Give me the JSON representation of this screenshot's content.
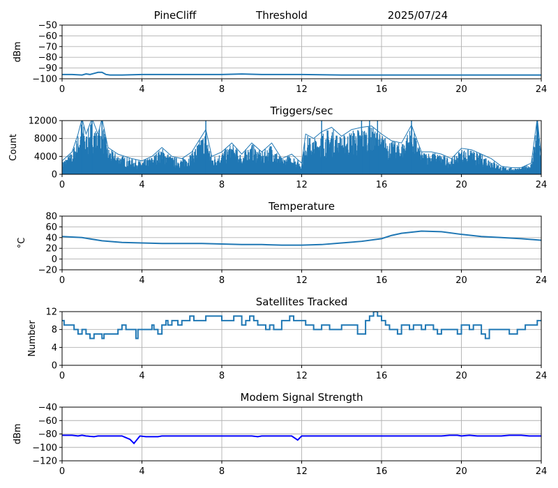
{
  "header": {
    "station": "PineCliff",
    "mode": "Threshold",
    "date": "2025/07/24"
  },
  "chart_data": [
    {
      "type": "line",
      "title": "",
      "ylabel": "dBm",
      "xlim": [
        0,
        24
      ],
      "ylim": [
        -100,
        -50
      ],
      "xticks": [
        0,
        4,
        8,
        12,
        16,
        20,
        24
      ],
      "yticks": [
        -100,
        -90,
        -80,
        -70,
        -60,
        -50
      ],
      "ytick_labels": [
        "−100",
        "−90",
        "−80",
        "−70",
        "−60",
        "−50"
      ],
      "color": "#1f77b4",
      "grid": true,
      "series": [
        {
          "x": [
            0,
            0.5,
            1.0,
            1.2,
            1.4,
            1.6,
            1.8,
            2.0,
            2.2,
            2.4,
            3.0,
            4.0,
            6.0,
            8.0,
            9.0,
            10.0,
            12.0,
            14.0,
            16.0,
            18.0,
            20.0,
            22.0,
            24.0
          ],
          "y": [
            -96,
            -96,
            -96.5,
            -95.5,
            -96,
            -95,
            -94,
            -94,
            -96,
            -96.5,
            -96.5,
            -96,
            -96,
            -96,
            -95.5,
            -96,
            -96,
            -96.5,
            -96.5,
            -96.5,
            -96.5,
            -96.5,
            -96.5
          ]
        }
      ]
    },
    {
      "type": "line",
      "title": "Triggers/sec",
      "ylabel": "Count",
      "xlim": [
        0,
        24
      ],
      "ylim": [
        0,
        12000
      ],
      "xticks": [
        0,
        4,
        8,
        12,
        16,
        20,
        24
      ],
      "yticks": [
        0,
        4000,
        8000,
        12000
      ],
      "ytick_labels": [
        "0",
        "4000",
        "8000",
        "12000"
      ],
      "color": "#1f77b4",
      "grid": true,
      "envelope": [
        [
          0,
          3000
        ],
        [
          0.5,
          5000
        ],
        [
          0.8,
          9000
        ],
        [
          1.0,
          12500
        ],
        [
          1.2,
          9000
        ],
        [
          1.5,
          12500
        ],
        [
          1.8,
          9000
        ],
        [
          2.0,
          12500
        ],
        [
          2.3,
          6000
        ],
        [
          2.8,
          4500
        ],
        [
          3.5,
          3500
        ],
        [
          4.0,
          3000
        ],
        [
          4.5,
          4000
        ],
        [
          5.0,
          6000
        ],
        [
          5.5,
          4000
        ],
        [
          6.0,
          3500
        ],
        [
          6.5,
          5000
        ],
        [
          7.2,
          10000
        ],
        [
          7.5,
          4000
        ],
        [
          8.0,
          5000
        ],
        [
          8.5,
          7000
        ],
        [
          9.0,
          4500
        ],
        [
          9.5,
          7000
        ],
        [
          10.0,
          5000
        ],
        [
          10.5,
          7000
        ],
        [
          11.0,
          3500
        ],
        [
          11.5,
          4500
        ],
        [
          12.0,
          2500
        ],
        [
          12.2,
          9000
        ],
        [
          12.6,
          8000
        ],
        [
          13.0,
          9500
        ],
        [
          13.5,
          10500
        ],
        [
          14.0,
          8500
        ],
        [
          14.5,
          10000
        ],
        [
          15.0,
          10500
        ],
        [
          15.5,
          10800
        ],
        [
          16.0,
          9000
        ],
        [
          16.5,
          7500
        ],
        [
          17.0,
          7000
        ],
        [
          17.5,
          11000
        ],
        [
          18.0,
          5000
        ],
        [
          18.5,
          5000
        ],
        [
          19.0,
          4500
        ],
        [
          19.5,
          3500
        ],
        [
          20.0,
          5800
        ],
        [
          20.5,
          5500
        ],
        [
          21.0,
          4500
        ],
        [
          21.5,
          3500
        ],
        [
          22.0,
          1800
        ],
        [
          22.5,
          1500
        ],
        [
          23.0,
          1500
        ],
        [
          23.5,
          2500
        ],
        [
          23.8,
          12500
        ],
        [
          24.0,
          4000
        ]
      ],
      "spikes": [
        1.0,
        1.5,
        2.0,
        7.2,
        13.0,
        15.0,
        15.4,
        15.8,
        17.5,
        23.8
      ]
    },
    {
      "type": "line",
      "title": "Temperature",
      "ylabel": "°C",
      "xlim": [
        0,
        24
      ],
      "ylim": [
        -20,
        80
      ],
      "xticks": [
        0,
        4,
        8,
        12,
        16,
        20,
        24
      ],
      "yticks": [
        -20,
        0,
        20,
        40,
        60,
        80
      ],
      "ytick_labels": [
        "−20",
        "0",
        "20",
        "40",
        "60",
        "80"
      ],
      "color": "#1f77b4",
      "grid": true,
      "series": [
        {
          "x": [
            0,
            1,
            2,
            3,
            4,
            5,
            6,
            7,
            8,
            9,
            10,
            11,
            12,
            13,
            14,
            15,
            16,
            16.5,
            17,
            18,
            19,
            20,
            21,
            22,
            23,
            24
          ],
          "y": [
            42,
            40,
            34,
            31,
            30,
            29,
            29,
            29,
            28,
            27,
            27,
            26,
            26,
            27,
            30,
            33,
            38,
            44,
            48,
            52,
            51,
            46,
            42,
            40,
            38,
            35
          ]
        }
      ]
    },
    {
      "type": "line",
      "title": "Satellites Tracked",
      "ylabel": "Number",
      "xlim": [
        0,
        24
      ],
      "ylim": [
        0,
        12
      ],
      "xticks": [
        0,
        4,
        8,
        12,
        16,
        20,
        24
      ],
      "yticks": [
        0,
        4,
        8,
        12
      ],
      "ytick_labels": [
        "0",
        "4",
        "8",
        "12"
      ],
      "color": "#1f77b4",
      "grid": true,
      "series": [
        {
          "x": [
            0,
            0.1,
            0.2,
            0.6,
            0.8,
            1.0,
            1.2,
            1.4,
            1.6,
            1.7,
            2.0,
            2.1,
            2.4,
            2.8,
            3.0,
            3.2,
            3.6,
            3.7,
            3.8,
            4.4,
            4.5,
            4.6,
            4.8,
            5.0,
            5.2,
            5.3,
            5.5,
            5.8,
            6.0,
            6.2,
            6.4,
            6.6,
            7.0,
            7.2,
            8.0,
            8.4,
            8.6,
            8.8,
            9.0,
            9.2,
            9.4,
            9.6,
            9.8,
            10.0,
            10.2,
            10.4,
            10.6,
            11.0,
            11.4,
            11.6,
            12.0,
            12.2,
            12.4,
            12.6,
            13.0,
            13.4,
            13.6,
            14.0,
            14.2,
            14.8,
            15.2,
            15.4,
            15.6,
            15.8,
            16.0,
            16.2,
            16.4,
            16.8,
            17.0,
            17.4,
            17.6,
            18.0,
            18.2,
            18.6,
            18.8,
            19.0,
            19.6,
            19.8,
            20.0,
            20.4,
            20.6,
            21.0,
            21.2,
            21.4,
            22.0,
            22.4,
            22.8,
            23.0,
            23.2,
            23.6,
            23.8,
            24.0
          ],
          "y": [
            10,
            9,
            9,
            8,
            7,
            8,
            7,
            6,
            7,
            7,
            6,
            7,
            7,
            8,
            9,
            8,
            8,
            6,
            8,
            8,
            9,
            8,
            7,
            9,
            10,
            9,
            10,
            9,
            10,
            10,
            11,
            10,
            10,
            11,
            10,
            10,
            11,
            11,
            9,
            10,
            11,
            10,
            9,
            9,
            8,
            9,
            8,
            10,
            11,
            10,
            10,
            9,
            9,
            8,
            9,
            8,
            8,
            9,
            9,
            7,
            10,
            11,
            12,
            11,
            10,
            9,
            8,
            7,
            9,
            8,
            9,
            8,
            9,
            8,
            7,
            8,
            8,
            7,
            9,
            8,
            9,
            7,
            6,
            8,
            8,
            7,
            8,
            8,
            9,
            9,
            10,
            10
          ]
        }
      ]
    },
    {
      "type": "line",
      "title": "Modem Signal Strength",
      "ylabel": "dBm",
      "xlim": [
        0,
        24
      ],
      "ylim": [
        -120,
        -40
      ],
      "xticks": [
        0,
        4,
        8,
        12,
        16,
        20,
        24
      ],
      "yticks": [
        -120,
        -100,
        -80,
        -60,
        -40
      ],
      "ytick_labels": [
        "−120",
        "−100",
        "−80",
        "−60",
        "−40"
      ],
      "color": "#0000ff",
      "grid": true,
      "series": [
        {
          "x": [
            0,
            0.5,
            0.8,
            1.0,
            1.2,
            1.6,
            1.8,
            2.0,
            3.0,
            3.4,
            3.6,
            3.9,
            4.2,
            4.8,
            5.0,
            9.5,
            9.8,
            10.0,
            11.5,
            11.8,
            12.0,
            19.0,
            19.4,
            19.8,
            20.0,
            20.4,
            20.8,
            21.0,
            22.0,
            22.4,
            23.0,
            23.4,
            24.0
          ],
          "y": [
            -82,
            -82,
            -83,
            -82,
            -83,
            -84,
            -83,
            -83,
            -83,
            -88,
            -94,
            -83,
            -84,
            -84,
            -83,
            -83,
            -84,
            -83,
            -83,
            -89,
            -83,
            -83,
            -82,
            -82,
            -83,
            -82,
            -83,
            -83,
            -83,
            -82,
            -82,
            -83,
            -83
          ]
        }
      ]
    }
  ]
}
